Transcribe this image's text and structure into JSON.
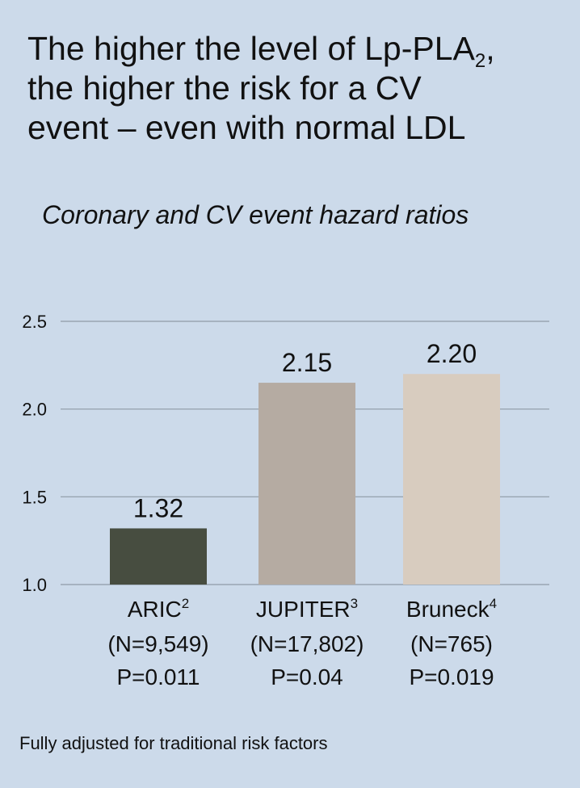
{
  "title": {
    "line1": "The higher the level of Lp-PLA",
    "line1_sub": "2",
    "line1_end": ",",
    "line2": "the higher the risk for a CV",
    "line3": "event – even with normal LDL"
  },
  "subtitle": "Coronary and CV event hazard ratios",
  "footnote": "Fully adjusted for traditional risk factors",
  "chart_data": {
    "type": "bar",
    "categories": [
      "ARIC",
      "JUPITER",
      "Bruneck"
    ],
    "category_superscripts": [
      "2",
      "3",
      "4"
    ],
    "category_n": [
      "(N=9,549)",
      "(N=17,802)",
      "(N=765)"
    ],
    "category_p": [
      "P=0.011",
      "P=0.04",
      "P=0.019"
    ],
    "values": [
      1.32,
      2.15,
      2.2
    ],
    "value_labels": [
      "1.32",
      "2.15",
      "2.20"
    ],
    "colors": [
      "#474d40",
      "#b5aba2",
      "#d8ccbf"
    ],
    "yticks": [
      "1.0",
      "1.5",
      "2.0",
      "2.5"
    ],
    "ylim": [
      1.0,
      2.5
    ],
    "grid": true
  }
}
